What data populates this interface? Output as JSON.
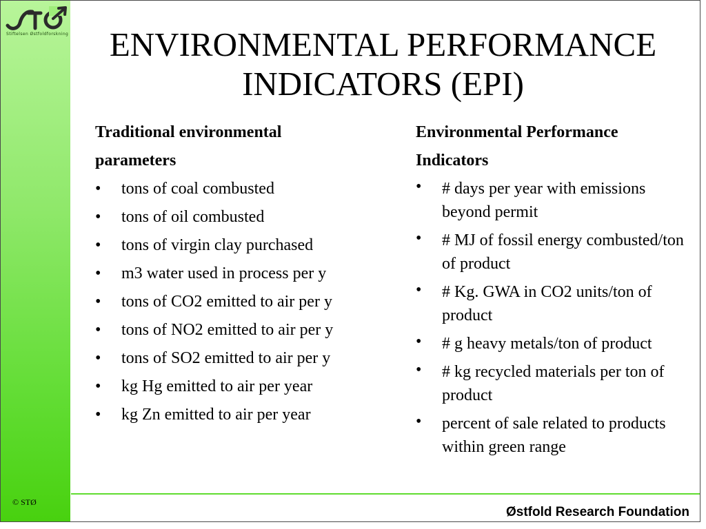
{
  "brand": {
    "logo_text": "STØ",
    "logo_subtitle": "Stiftelsen Østfoldforskning",
    "copyright": "© STØ",
    "footer": "Østfold Research Foundation",
    "accent_color": "#4ccf16"
  },
  "title": {
    "line1": "ENVIRONMENTAL PERFORMANCE",
    "line2": "INDICATORS (EPI)"
  },
  "left_column": {
    "heading_line1": "Traditional environmental",
    "heading_line2": "parameters",
    "items": [
      "tons of coal combusted",
      "tons of oil combusted",
      "tons of virgin clay purchased",
      "m3 water used in process per y",
      "tons of CO2 emitted to air per y",
      "tons of NO2 emitted to air per y",
      "tons of SO2 emitted to air per y",
      "kg Hg emitted to air per year",
      "kg Zn emitted to air per year"
    ]
  },
  "right_column": {
    "heading_line1": "Environmental Performance",
    "heading_line2": "Indicators",
    "items": [
      "# days per year with emissions beyond permit",
      "# MJ of fossil energy combusted/ton of product",
      "# Kg. GWA in CO2 units/ton of product",
      "# g heavy metals/ton of product",
      "# kg recycled materials per ton of product",
      "percent of sale related to products within green range"
    ]
  },
  "bullet_glyph": "•"
}
